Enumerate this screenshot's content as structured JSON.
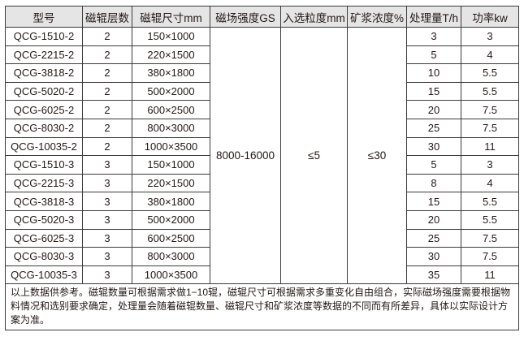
{
  "headers": [
    "型号",
    "磁辊层数",
    "磁辊尺寸mm",
    "磁场强度GS",
    "入选粒度mm",
    "矿浆浓度%",
    "处理量T/h",
    "功率kw"
  ],
  "shared": {
    "field_strength": "8000-16000",
    "particle_size": "≤5",
    "pulp_density": "≤30"
  },
  "rows": [
    {
      "model": "QCG-1510-2",
      "layers": "2",
      "size": "150×1000",
      "capacity": "3",
      "power": "3"
    },
    {
      "model": "QCG-2215-2",
      "layers": "2",
      "size": "220×1500",
      "capacity": "5",
      "power": "4"
    },
    {
      "model": "QCG-3818-2",
      "layers": "2",
      "size": "380×1800",
      "capacity": "10",
      "power": "5.5"
    },
    {
      "model": "QCG-5020-2",
      "layers": "2",
      "size": "500×2000",
      "capacity": "15",
      "power": "5.5"
    },
    {
      "model": "QCG-6025-2",
      "layers": "2",
      "size": "600×2500",
      "capacity": "20",
      "power": "7.5"
    },
    {
      "model": "QCG-8030-2",
      "layers": "2",
      "size": "800×3000",
      "capacity": "25",
      "power": "7.5"
    },
    {
      "model": "QCG-10035-2",
      "layers": "2",
      "size": "1000×3500",
      "capacity": "30",
      "power": "11"
    },
    {
      "model": "QCG-1510-3",
      "layers": "3",
      "size": "150×1000",
      "capacity": "5",
      "power": "3"
    },
    {
      "model": "QCG-2215-3",
      "layers": "3",
      "size": "220×1500",
      "capacity": "8",
      "power": "4"
    },
    {
      "model": "QCG-3818-3",
      "layers": "3",
      "size": "380×1800",
      "capacity": "15",
      "power": "5.5"
    },
    {
      "model": "QCG-5020-3",
      "layers": "3",
      "size": "500×2000",
      "capacity": "20",
      "power": "5.5"
    },
    {
      "model": "QCG-6025-3",
      "layers": "3",
      "size": "600×2500",
      "capacity": "25",
      "power": "7.5"
    },
    {
      "model": "QCG-8030-3",
      "layers": "3",
      "size": "800×3000",
      "capacity": "30",
      "power": "7.5"
    },
    {
      "model": "QCG-10035-3",
      "layers": "3",
      "size": "1000×3500",
      "capacity": "35",
      "power": "11"
    }
  ],
  "note": "以上数据供参考。磁辊数量可根据需求做1−10辊，磁辊尺寸可根据需求多重变化自由组合，实际磁场强度需要根据物料情况和选别要求确定，处理量会随着磁辊数量、磁辊尺寸和矿浆浓度等数据的不同而有所差异，具体以实际设计方案为准。",
  "colors": {
    "header_bg": "#e5e5e5",
    "border": "#3a3a3a"
  }
}
